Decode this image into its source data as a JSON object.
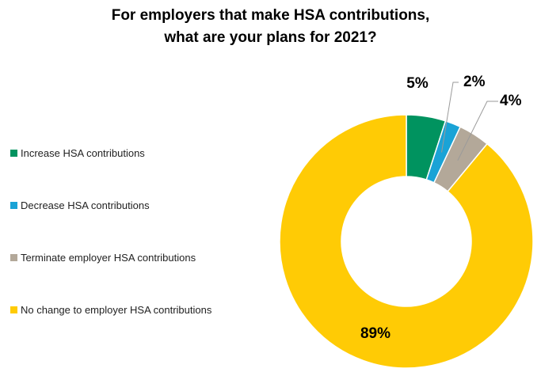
{
  "chart_data": {
    "type": "pie",
    "title_lines": [
      "For employers that make HSA contributions,",
      "what are your plans for 2021?"
    ],
    "categories": [
      "Increase HSA contributions",
      "Decrease HSA contributions",
      "Terminate employer HSA contributions",
      "No change to employer HSA contributions"
    ],
    "values": [
      5,
      2,
      4,
      89
    ],
    "data_labels": [
      "5%",
      "2%",
      "4%",
      "89%"
    ],
    "colors": [
      "#00935f",
      "#1aa3d6",
      "#b3a899",
      "#ffcb05"
    ],
    "donut": true,
    "legend_position": "left"
  }
}
